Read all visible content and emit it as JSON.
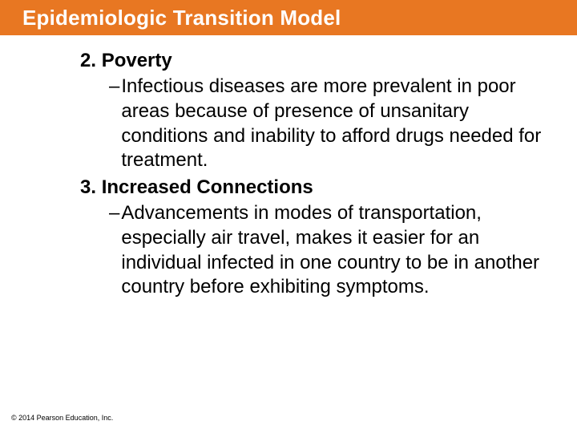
{
  "colors": {
    "title_bar_bg": "#e87722",
    "title_text": "#ffffff",
    "body_text": "#000000",
    "page_bg": "#ffffff"
  },
  "typography": {
    "title_fontsize": 26,
    "heading_fontsize": 24,
    "body_fontsize": 24,
    "footer_fontsize": 9,
    "title_weight": "bold",
    "heading_weight": "bold",
    "font_family": "Arial"
  },
  "title": "Epidemiologic Transition Model",
  "items": [
    {
      "number": "2.",
      "label": "Poverty",
      "bullet": "Infectious diseases are more prevalent in poor areas because of presence of unsanitary conditions and inability to afford drugs needed for treatment."
    },
    {
      "number": "3.",
      "label": "Increased Connections",
      "bullet": "Advancements in modes of transportation, especially air travel, makes it easier for an individual infected in one country to be in another country before exhibiting symptoms."
    }
  ],
  "footer": "© 2014 Pearson Education, Inc."
}
